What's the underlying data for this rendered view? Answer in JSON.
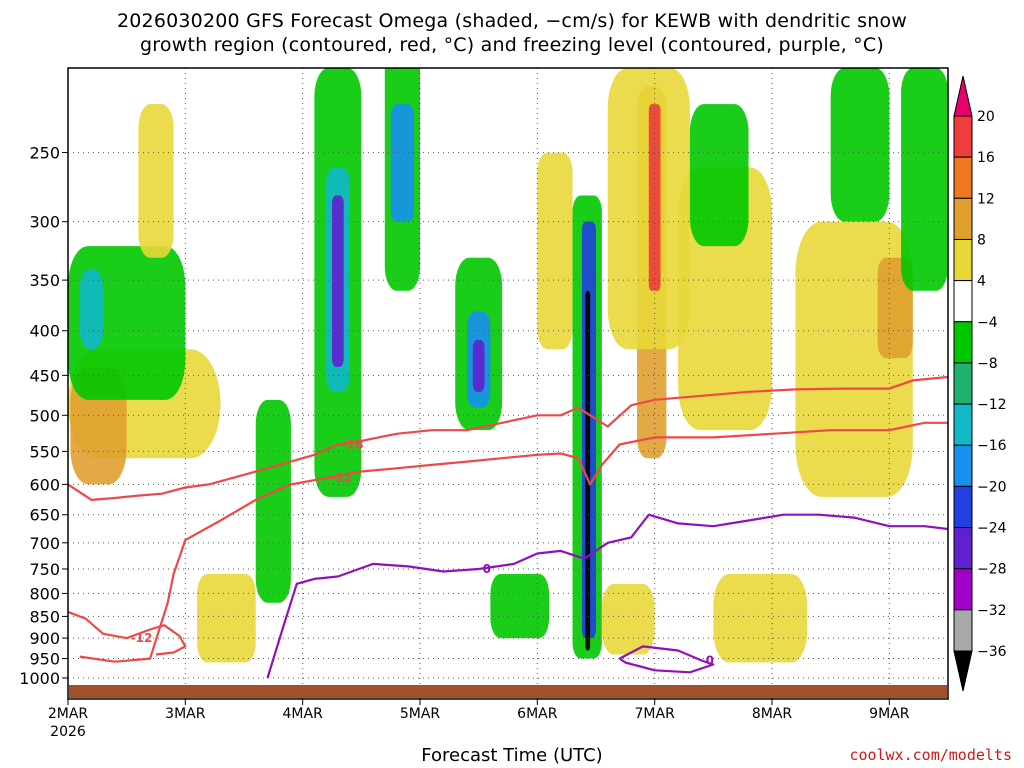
{
  "title_line1": "2026030200 GFS Forecast Omega (shaded, −cm/s) for KEWB with dendritic snow",
  "title_line2": "growth region (contoured, red, °C) and freezing level (contoured, purple, °C)",
  "xlabel": "Forecast Time (UTC)",
  "credit": "coolwx.com/modelts",
  "colors": {
    "dgz": "#f04848",
    "freezing": "#9010c0",
    "terrain": "#a0522d"
  },
  "chart_data": {
    "type": "heatmap",
    "title": "2026030200 GFS Forecast Omega (shaded, −cm/s) for KEWB with dendritic snow growth region (contoured, red, °C) and freezing level (contoured, purple, °C)",
    "xlabel": "Forecast Time (UTC)",
    "ylabel": "",
    "y_levels_hPa": [
      250,
      300,
      350,
      400,
      450,
      500,
      550,
      600,
      650,
      700,
      750,
      800,
      850,
      900,
      950,
      1000
    ],
    "y_tick_labels": [
      "250",
      "300",
      "350",
      "400",
      "450",
      "500",
      "550",
      "600",
      "650",
      "700",
      "750",
      "800",
      "850",
      "900",
      "950",
      "1000"
    ],
    "ylim_hPa": [
      1000,
      200
    ],
    "y_scale": "log",
    "x_tick_labels": [
      "2MAR",
      "3MAR",
      "4MAR",
      "5MAR",
      "6MAR",
      "7MAR",
      "8MAR",
      "9MAR"
    ],
    "x_start_label": "2026",
    "xlim_days": [
      2.0,
      9.5
    ],
    "grid": true,
    "colorbar": {
      "ticks": [
        "20",
        "16",
        "12",
        "8",
        "4",
        "−4",
        "−8",
        "−12",
        "−16",
        "−20",
        "−24",
        "−28",
        "−32",
        "−36"
      ],
      "colors": [
        "#e8006c",
        "#f03c3c",
        "#f07820",
        "#e0a030",
        "#e8d838",
        "#ffffff",
        "#00c800",
        "#20b070",
        "#10b8c8",
        "#1890f0",
        "#2040e0",
        "#6020d0",
        "#a000c8",
        "#a8a8a8",
        "#000000"
      ]
    },
    "series": [
      {
        "name": "-18",
        "x": [
          2.0,
          2.2,
          2.4,
          2.6,
          2.8,
          3.0,
          3.2,
          3.5,
          3.8,
          4.1,
          4.3,
          4.5,
          4.8,
          5.1,
          5.4,
          5.7,
          6.0,
          6.2,
          6.35,
          6.45,
          6.6,
          6.8,
          7.0,
          7.4,
          7.8,
          8.2,
          8.6,
          9.0,
          9.2,
          9.5
        ],
        "y": [
          600,
          625,
          622,
          618,
          615,
          605,
          600,
          585,
          570,
          555,
          540,
          535,
          525,
          520,
          520,
          510,
          500,
          500,
          490,
          500,
          515,
          487,
          480,
          475,
          470,
          467,
          466,
          466,
          456,
          452
        ]
      },
      {
        "name": "-12",
        "x": [
          2.1,
          2.4,
          2.7,
          2.85,
          2.9,
          3.0,
          3.3,
          3.6,
          3.9,
          4.2,
          4.5,
          4.8,
          5.1,
          5.4,
          5.7,
          6.0,
          6.2,
          6.35,
          6.45,
          6.55,
          6.7,
          7.0,
          7.5,
          8.0,
          8.5,
          9.0,
          9.3,
          9.5
        ],
        "y": [
          945,
          958,
          950,
          820,
          760,
          695,
          660,
          625,
          600,
          590,
          580,
          575,
          570,
          565,
          560,
          555,
          553,
          560,
          600,
          570,
          540,
          530,
          530,
          525,
          520,
          520,
          510,
          510
        ]
      },
      {
        "name": "-12",
        "x": [
          2.0,
          2.15,
          2.3,
          2.5,
          2.7,
          2.82,
          2.95,
          3.0,
          2.9,
          2.75
        ],
        "y": [
          840,
          855,
          890,
          900,
          880,
          870,
          895,
          920,
          935,
          940
        ]
      },
      {
        "name": "0",
        "x": [
          3.7,
          3.85,
          3.95,
          4.1,
          4.3,
          4.6,
          4.9,
          5.2,
          5.5,
          5.8,
          6.0,
          6.2,
          6.4,
          6.6,
          6.8,
          6.95,
          7.2,
          7.5,
          7.8,
          8.1,
          8.4,
          8.7,
          9.0,
          9.3,
          9.5
        ],
        "y": [
          1000,
          860,
          780,
          770,
          765,
          740,
          745,
          755,
          750,
          740,
          720,
          715,
          730,
          700,
          690,
          650,
          665,
          670,
          660,
          650,
          650,
          655,
          670,
          670,
          675
        ]
      },
      {
        "name": "0",
        "x": [
          6.7,
          6.9,
          7.2,
          7.4,
          7.5,
          7.3,
          7.0,
          6.75,
          6.7
        ],
        "y": [
          950,
          920,
          930,
          955,
          965,
          985,
          980,
          960,
          950
        ]
      }
    ]
  }
}
